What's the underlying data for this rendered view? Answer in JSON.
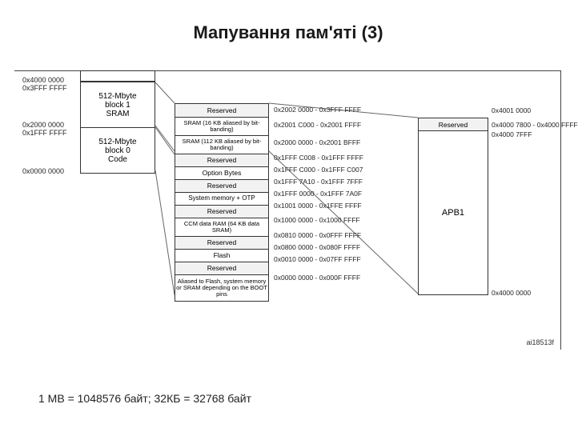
{
  "title": {
    "text": "Мапування пам'яті (3)",
    "fontsize": 22
  },
  "footer": {
    "text": "1 MB = 1048576 байт; 32КБ = 32768 байт"
  },
  "colors": {
    "bg": "#ffffff",
    "border": "#333333",
    "shade": "#f2f2f2",
    "text": "#222222"
  },
  "left_blocks": [
    {
      "lines": [
        "512-Mbyte",
        "block 1",
        "SRAM"
      ],
      "h": 56,
      "fs": 10,
      "addr_top": "0x4000 0000",
      "addr_top2": "0x3FFF FFFF",
      "addr_bot": "0x2000 0000",
      "addr_bot2": "0x1FFF FFFF"
    },
    {
      "lines": [
        "512-Mbyte",
        "block 0",
        "Code"
      ],
      "h": 56,
      "fs": 10,
      "addr_bot": "0x0000 0000"
    }
  ],
  "detail_rows": [
    {
      "label": "Reserved",
      "h": 16,
      "fs": 8.5,
      "bg": "shade",
      "addr": "0x2002 0000 - 0x3FFF FFFF"
    },
    {
      "label": "SRAM (16 KB aliased by bit-banding)",
      "h": 22,
      "fs": 7.5,
      "bg": "white",
      "addr": "0x2001 C000 - 0x2001 FFFF"
    },
    {
      "label": "SRAM (112 KB aliased by bit-banding)",
      "h": 22,
      "fs": 7.5,
      "bg": "white",
      "addr": "0x2000 0000 - 0x2001 BFFF"
    },
    {
      "label": "Reserved",
      "h": 15,
      "fs": 8.5,
      "bg": "shade",
      "addr": "0x1FFF C008 - 0x1FFF FFFF"
    },
    {
      "label": "Option Bytes",
      "h": 15,
      "fs": 8.5,
      "bg": "white",
      "addr": "0x1FFF C000 - 0x1FFF C007"
    },
    {
      "label": "Reserved",
      "h": 15,
      "fs": 8.5,
      "bg": "shade",
      "addr": "0x1FFF 7A10 - 0x1FFF 7FFF"
    },
    {
      "label": "System memory + OTP",
      "h": 15,
      "fs": 8,
      "bg": "white",
      "addr": "0x1FFF 0000 - 0x1FFF 7A0F"
    },
    {
      "label": "Reserved",
      "h": 15,
      "fs": 8.5,
      "bg": "shade",
      "addr": "0x1001 0000 - 0x1FFE FFFF"
    },
    {
      "label": "CCM data RAM (64 KB data SRAM)",
      "h": 22,
      "fs": 7.5,
      "bg": "white",
      "addr": "0x1000 0000 - 0x1000 FFFF"
    },
    {
      "label": "Reserved",
      "h": 15,
      "fs": 8.5,
      "bg": "shade",
      "addr": "0x0810 0000 - 0x0FFF FFFF"
    },
    {
      "label": "Flash",
      "h": 15,
      "fs": 8.5,
      "bg": "white",
      "addr": "0x0800 0000 - 0x080F FFFF"
    },
    {
      "label": "Reserved",
      "h": 15,
      "fs": 8.5,
      "bg": "shade",
      "addr": "0x0010 0000 - 0x07FF FFFF"
    },
    {
      "label": "Aliased to Flash, system memory or SRAM depending on the BOOT pins",
      "h": 32,
      "fs": 7.5,
      "bg": "white",
      "addr": "0x0000 0000 - 0x000F FFFF"
    }
  ],
  "right": {
    "reserved_label": "Reserved",
    "apb_label": "APB1",
    "addrs": [
      "0x4001 0000",
      "0x4000 7800 - 0x4000 FFFF",
      "0x4000 7FFF",
      "0x4000 0000"
    ],
    "tag": "ai18513f"
  }
}
